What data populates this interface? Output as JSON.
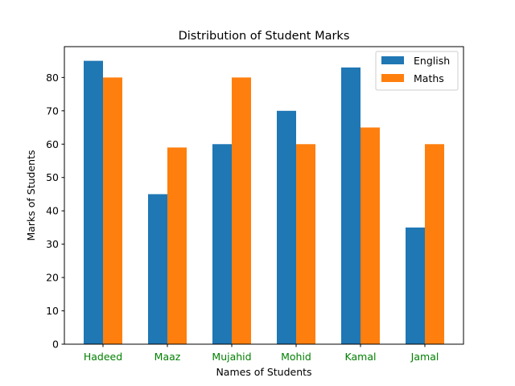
{
  "chart_data": {
    "type": "bar",
    "title": "Distribution of Student Marks",
    "xlabel": "Names of Students",
    "ylabel": "Marks of Students",
    "categories": [
      "Hadeed",
      "Maaz",
      "Mujahid",
      "Mohid",
      "Kamal",
      "Jamal"
    ],
    "category_label_color": "#008000",
    "series": [
      {
        "name": "English",
        "color": "#1f77b4",
        "values": [
          85,
          45,
          60,
          70,
          83,
          35
        ]
      },
      {
        "name": "Maths",
        "color": "#ff7f0e",
        "values": [
          80,
          59,
          80,
          60,
          65,
          60
        ]
      }
    ],
    "ylim": [
      0,
      89.25
    ],
    "yticks": [
      0,
      10,
      20,
      30,
      40,
      50,
      60,
      70,
      80
    ],
    "legend_position": "top-right",
    "grid": false
  }
}
